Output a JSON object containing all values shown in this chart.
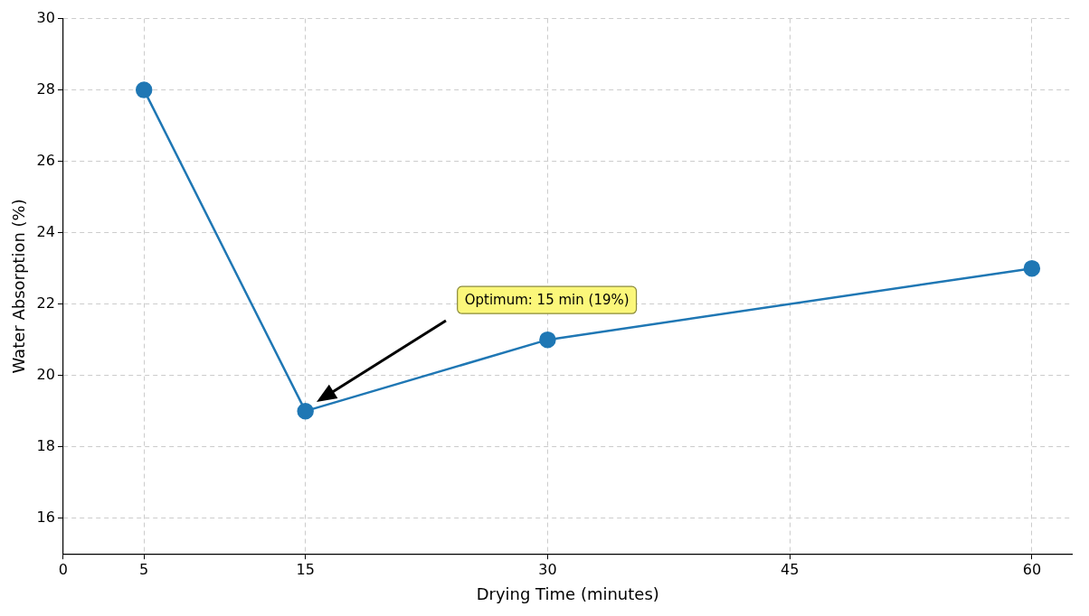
{
  "chart_data": {
    "type": "line",
    "xlabel": "Drying Time (minutes)",
    "ylabel": "Water Absorption (%)",
    "x": [
      5,
      15,
      30,
      60
    ],
    "series": [
      {
        "color": "#1f77b4",
        "values": [
          28,
          19,
          21,
          23
        ]
      }
    ],
    "xlim": [
      0,
      62.5
    ],
    "xticks": [
      0,
      5,
      15,
      30,
      45,
      60
    ],
    "ylim": [
      15,
      30
    ],
    "yticks": [
      16,
      18,
      20,
      22,
      24,
      26,
      28,
      30
    ],
    "grid": true,
    "legend": false,
    "marker": "circle",
    "line_style": "solid",
    "annotations": [
      "Optimum: 15 min (19%)"
    ]
  }
}
